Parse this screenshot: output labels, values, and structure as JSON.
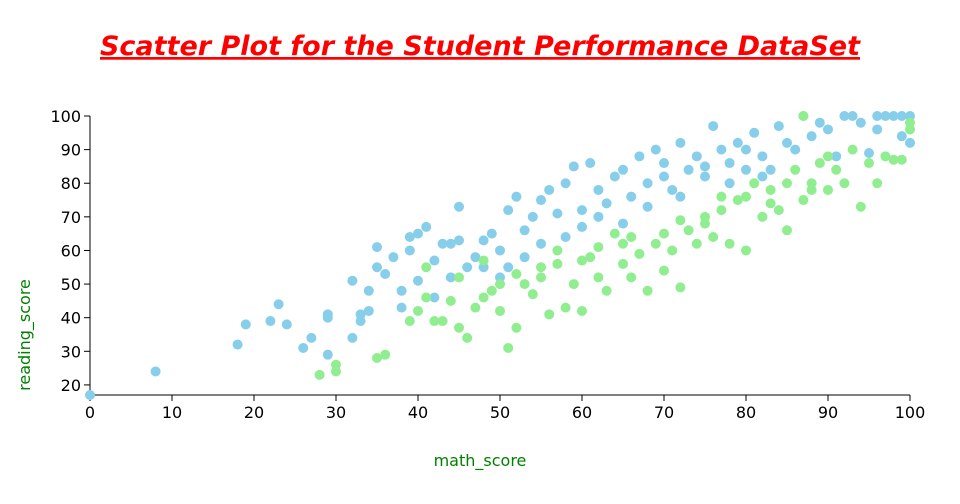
{
  "chart_data": {
    "type": "scatter",
    "title": "Scatter Plot for the Student Performance DataSet",
    "x_label": "math_score",
    "y_label": "reading_score",
    "xlim": [
      0,
      100
    ],
    "ylim": [
      17,
      100
    ],
    "xticks": [
      0,
      10,
      20,
      30,
      40,
      50,
      60,
      70,
      80,
      90,
      100
    ],
    "yticks": [
      20,
      30,
      40,
      50,
      60,
      70,
      80,
      90,
      100
    ],
    "series": [
      {
        "color": "#87ceeb",
        "x": [
          0,
          8,
          18,
          19,
          22,
          23,
          24,
          26,
          27,
          29,
          29,
          29,
          32,
          32,
          33,
          33,
          34,
          34,
          35,
          35,
          36,
          37,
          38,
          38,
          39,
          39,
          40,
          40,
          41,
          42,
          42,
          43,
          44,
          44,
          45,
          45,
          46,
          47,
          48,
          49,
          50,
          51,
          51,
          52,
          53,
          54,
          55,
          56,
          57,
          58,
          59,
          60,
          61,
          62,
          63,
          64,
          65,
          66,
          67,
          68,
          69,
          70,
          71,
          72,
          73,
          74,
          75,
          76,
          77,
          78,
          79,
          80,
          81,
          82,
          83,
          84,
          85,
          86,
          87,
          88,
          89,
          90,
          91,
          92,
          93,
          94,
          95,
          96,
          97,
          98,
          99,
          100,
          100,
          99,
          96,
          60,
          58,
          55,
          53,
          50,
          48,
          62,
          65,
          68,
          70,
          72,
          75,
          78,
          80,
          82
        ],
        "values": [
          17,
          24,
          32,
          38,
          39,
          44,
          38,
          31,
          34,
          29,
          40,
          41,
          34,
          51,
          39,
          41,
          42,
          48,
          61,
          55,
          53,
          58,
          48,
          43,
          60,
          64,
          65,
          51,
          67,
          57,
          46,
          62,
          62,
          52,
          73,
          63,
          55,
          58,
          63,
          65,
          60,
          55,
          72,
          76,
          66,
          70,
          75,
          78,
          71,
          80,
          85,
          72,
          86,
          78,
          74,
          82,
          84,
          76,
          88,
          80,
          90,
          86,
          78,
          92,
          84,
          88,
          82,
          97,
          90,
          86,
          92,
          90,
          95,
          88,
          84,
          97,
          92,
          90,
          100,
          94,
          98,
          96,
          88,
          100,
          100,
          98,
          89,
          100,
          100,
          100,
          100,
          100,
          92,
          94,
          96,
          67,
          64,
          62,
          58,
          52,
          55,
          70,
          68,
          73,
          82,
          76,
          85,
          80,
          84,
          82
        ]
      },
      {
        "color": "#90ee90",
        "x": [
          28,
          30,
          30,
          35,
          36,
          39,
          40,
          41,
          41,
          42,
          43,
          44,
          45,
          45,
          46,
          47,
          48,
          49,
          50,
          51,
          52,
          53,
          54,
          55,
          56,
          57,
          58,
          59,
          60,
          61,
          62,
          63,
          64,
          65,
          66,
          67,
          68,
          69,
          70,
          71,
          72,
          73,
          74,
          75,
          76,
          77,
          78,
          79,
          80,
          81,
          82,
          83,
          84,
          85,
          86,
          87,
          88,
          89,
          90,
          91,
          92,
          93,
          94,
          95,
          96,
          97,
          98,
          99,
          100,
          100,
          87,
          90,
          85,
          80,
          75,
          70,
          65,
          60,
          55,
          50,
          48,
          52,
          57,
          62,
          66,
          72,
          77,
          83,
          88
        ],
        "values": [
          23,
          24,
          26,
          28,
          29,
          39,
          42,
          55,
          46,
          39,
          39,
          45,
          52,
          37,
          34,
          43,
          46,
          48,
          42,
          31,
          37,
          50,
          47,
          55,
          41,
          60,
          43,
          50,
          42,
          58,
          52,
          48,
          65,
          56,
          52,
          59,
          48,
          62,
          54,
          60,
          49,
          66,
          62,
          68,
          64,
          72,
          62,
          75,
          60,
          80,
          70,
          78,
          72,
          66,
          84,
          75,
          80,
          86,
          78,
          84,
          80,
          90,
          73,
          86,
          80,
          88,
          87,
          87,
          96,
          98,
          100,
          88,
          80,
          76,
          70,
          65,
          62,
          57,
          52,
          50,
          57,
          53,
          56,
          61,
          64,
          69,
          76,
          74,
          78
        ]
      }
    ]
  }
}
